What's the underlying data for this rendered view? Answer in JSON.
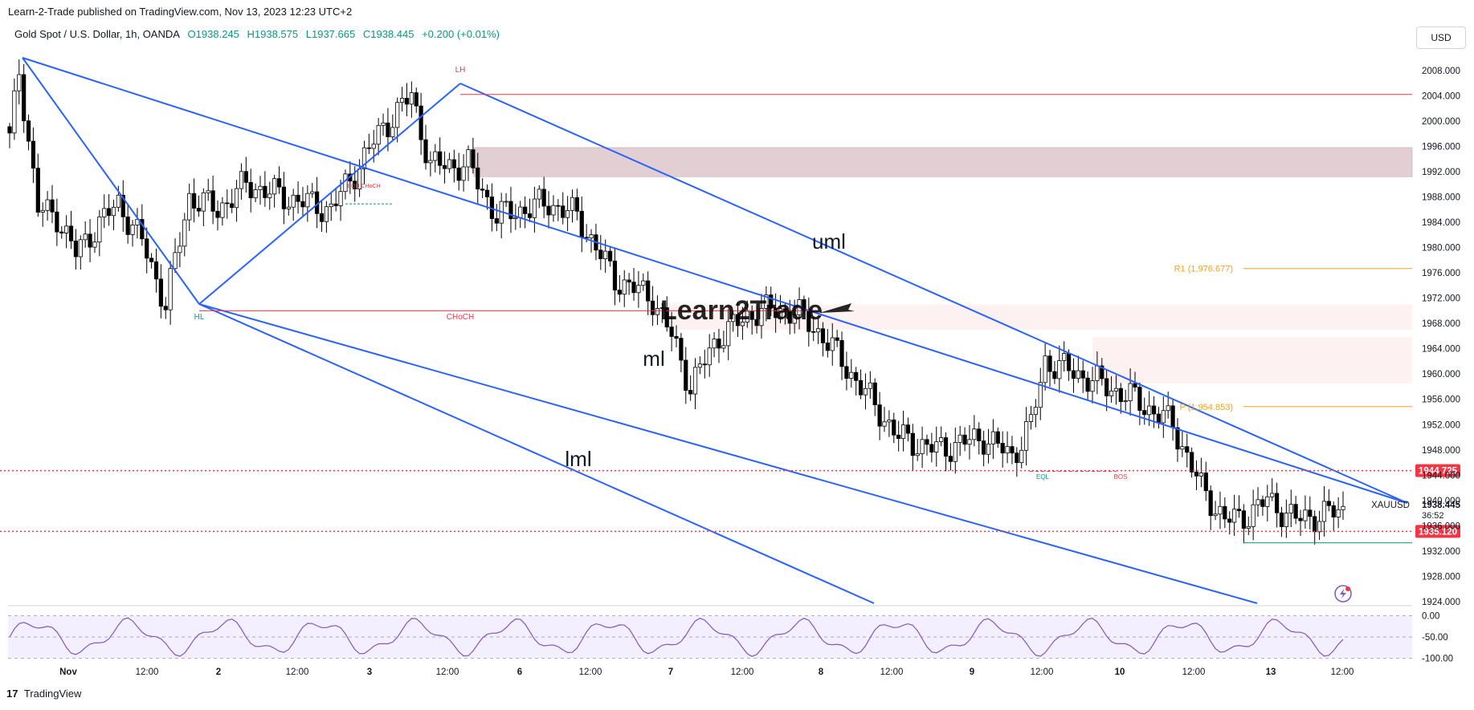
{
  "publisher": "Learn-2-Trade published on TradingView.com, Nov 13, 2023 12:23 UTC+2",
  "legend": {
    "symbol": "Gold Spot / U.S. Dollar, 1h, OANDA",
    "open": "O1938.245",
    "high": "H1938.575",
    "low": "L1937.665",
    "close": "C1938.445",
    "change": "+0.200 (+0.01%)"
  },
  "currency": "USD",
  "footer": {
    "logo": "17",
    "brand": "TradingView"
  },
  "watermark": "Learn2Trade",
  "colors": {
    "up": "#ffffff",
    "down": "#000000",
    "channel": "#2962ff",
    "level": "#f23645",
    "pivot": "#f7a21b",
    "osc": "#7e57c2"
  },
  "chart_data": {
    "type": "candlestick",
    "symbol": "XAUUSD",
    "timeframe": "1h",
    "ylim": [
      1924,
      2010
    ],
    "y_ticks": [
      "2008.000",
      "2004.000",
      "2000.000",
      "1996.000",
      "1992.000",
      "1988.000",
      "1984.000",
      "1980.000",
      "1976.000",
      "1972.000",
      "1968.000",
      "1964.000",
      "1960.000",
      "1956.000",
      "1952.000",
      "1948.000",
      "1944.000",
      "1940.000",
      "1936.000",
      "1932.000",
      "1928.000",
      "1924.000"
    ],
    "x_ticks": [
      "Nov",
      "12:00",
      "2",
      "12:00",
      "3",
      "12:00",
      "6",
      "12:00",
      "7",
      "12:00",
      "8",
      "12:00",
      "9",
      "12:00",
      "10",
      "12:00",
      "13",
      "12:00"
    ],
    "last_price": {
      "symbol": "XAUUSD",
      "value": "1938.445",
      "countdown": "36:52"
    },
    "price_labels": [
      {
        "value": "1944.725",
        "price": 1944.725
      },
      {
        "value": "1935.120",
        "price": 1935.12
      }
    ],
    "pivots": [
      {
        "label": "R1 (1,976.677)",
        "price": 1976.677
      },
      {
        "label": "P (1,954.853)",
        "price": 1954.853
      }
    ],
    "annotations": [
      {
        "text": "LH"
      },
      {
        "text": "HL"
      },
      {
        "text": "CHoCH"
      },
      {
        "text": "EQL"
      },
      {
        "text": "BOS"
      },
      {
        "text": "EQH CHoCH"
      },
      {
        "text": "uml"
      },
      {
        "text": "ml"
      },
      {
        "text": "lml"
      }
    ],
    "zones": [
      {
        "from": 1991.2,
        "to": 1995.8
      },
      {
        "from": 1967.0,
        "to": 1971.0
      },
      {
        "from": 1958.5,
        "to": 1965.8
      }
    ],
    "oscillator": {
      "ticks": [
        "0.00",
        "-50.00",
        "-100.00"
      ],
      "ylim": [
        -105,
        5
      ]
    }
  }
}
